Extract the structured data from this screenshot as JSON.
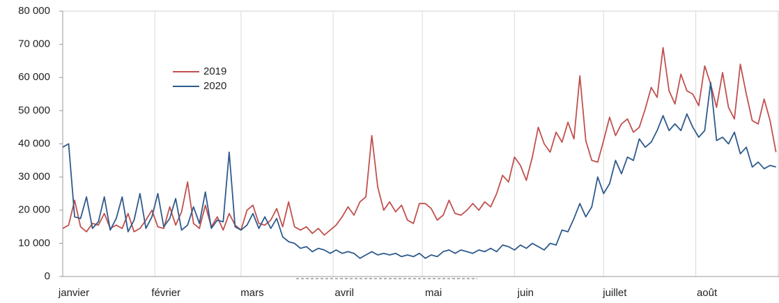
{
  "chart_data": {
    "type": "line",
    "x": [
      0,
      2,
      4,
      6,
      8,
      10,
      12,
      14,
      16,
      18,
      20,
      22,
      24,
      26,
      28,
      30,
      32,
      34,
      36,
      38,
      40,
      42,
      44,
      46,
      48,
      50,
      52,
      54,
      56,
      58,
      60,
      62,
      64,
      66,
      68,
      70,
      72,
      74,
      76,
      78,
      80,
      82,
      84,
      86,
      88,
      90,
      92,
      94,
      96,
      98,
      100,
      102,
      104,
      106,
      108,
      110,
      112,
      114,
      116,
      118,
      120,
      122,
      124,
      126,
      128,
      130,
      132,
      134,
      136,
      138,
      140,
      142,
      144,
      146,
      148,
      150,
      152,
      154,
      156,
      158,
      160,
      162,
      164,
      166,
      168,
      170,
      172,
      174,
      176,
      178,
      180,
      182,
      184,
      186,
      188,
      190,
      192,
      194,
      196,
      198,
      200,
      202,
      204,
      206,
      208,
      210,
      212,
      214,
      216,
      218,
      220,
      222,
      224,
      226,
      228,
      230,
      232,
      234,
      236,
      238,
      240
    ],
    "series": [
      {
        "name": "2019",
        "color": "#c0504d",
        "values": [
          14500,
          15500,
          23000,
          15000,
          13500,
          16000,
          15500,
          19000,
          14500,
          15500,
          14500,
          19000,
          13500,
          14500,
          17000,
          20000,
          15000,
          14500,
          21000,
          15500,
          19500,
          28500,
          16000,
          14500,
          21500,
          15000,
          18000,
          14000,
          19000,
          15500,
          14000,
          20000,
          21500,
          16000,
          15500,
          17000,
          20500,
          15000,
          22500,
          15000,
          14000,
          15000,
          13000,
          14500,
          12500,
          14000,
          15500,
          18000,
          21000,
          18500,
          22500,
          24000,
          42500,
          27000,
          20000,
          22500,
          19500,
          21500,
          17000,
          16000,
          22000,
          22000,
          20500,
          17000,
          18500,
          23000,
          19000,
          18500,
          20000,
          22000,
          20000,
          22500,
          21000,
          25000,
          30500,
          28500,
          36000,
          33500,
          29000,
          36000,
          45000,
          40000,
          37500,
          43500,
          40500,
          46500,
          41500,
          60500,
          41000,
          35000,
          34500,
          41000,
          48000,
          42500,
          46000,
          47500,
          43500,
          45000,
          50500,
          57000,
          54000,
          69000,
          56000,
          52000,
          61000,
          56000,
          55000,
          51500,
          63500,
          58000,
          51000,
          61500,
          51000,
          47500,
          64000,
          55000,
          47000,
          46000,
          53500,
          47000,
          37500
        ]
      },
      {
        "name": "2020",
        "color": "#2e5a8c",
        "values": [
          39000,
          40000,
          18000,
          17500,
          24000,
          14500,
          16500,
          24000,
          14000,
          17500,
          24000,
          13500,
          17000,
          25000,
          14500,
          18000,
          25000,
          15000,
          17500,
          23500,
          14000,
          15500,
          21000,
          16000,
          25500,
          14500,
          17000,
          16500,
          37500,
          15000,
          14000,
          15500,
          19000,
          14500,
          18000,
          14500,
          17500,
          12000,
          10500,
          10000,
          8500,
          9000,
          7500,
          8500,
          8000,
          7000,
          8000,
          7000,
          7500,
          7000,
          5500,
          6500,
          7500,
          6500,
          7000,
          6500,
          7000,
          6000,
          6500,
          6000,
          7000,
          5500,
          6500,
          6000,
          7500,
          8000,
          7000,
          8000,
          7500,
          7000,
          8000,
          7500,
          8500,
          7500,
          9500,
          9000,
          8000,
          9500,
          8500,
          10000,
          9000,
          8000,
          10000,
          9500,
          14000,
          13500,
          17500,
          22000,
          18000,
          21000,
          30000,
          25000,
          28000,
          35000,
          31000,
          36000,
          35000,
          41500,
          39000,
          40500,
          44000,
          48500,
          44000,
          46000,
          44000,
          49000,
          45000,
          42000,
          44000,
          58500,
          41000,
          42000,
          40000,
          43500,
          37000,
          39000,
          33000,
          34500,
          32500,
          33500,
          33000
        ]
      }
    ],
    "xlim": [
      0,
      241
    ],
    "xticks": [
      {
        "value": 0,
        "label": "janvier"
      },
      {
        "value": 31,
        "label": "février"
      },
      {
        "value": 60,
        "label": "mars"
      },
      {
        "value": 91,
        "label": "avril"
      },
      {
        "value": 121,
        "label": "mai"
      },
      {
        "value": 152,
        "label": "juin"
      },
      {
        "value": 182,
        "label": "juillet"
      },
      {
        "value": 213,
        "label": "août"
      }
    ],
    "ylim": [
      0,
      80000
    ],
    "yticks": [
      0,
      {
        "value": 10000,
        "label": "10 000"
      },
      {
        "value": 20000,
        "label": "20 000"
      },
      {
        "value": 30000,
        "label": "30 000"
      },
      {
        "value": 40000,
        "label": "40 000"
      },
      {
        "value": 50000,
        "label": "50 000"
      },
      {
        "value": 60000,
        "label": "60 000"
      },
      {
        "value": 70000,
        "label": "70 000"
      },
      {
        "value": 80000,
        "label": "80 000"
      }
    ],
    "grid": true
  }
}
